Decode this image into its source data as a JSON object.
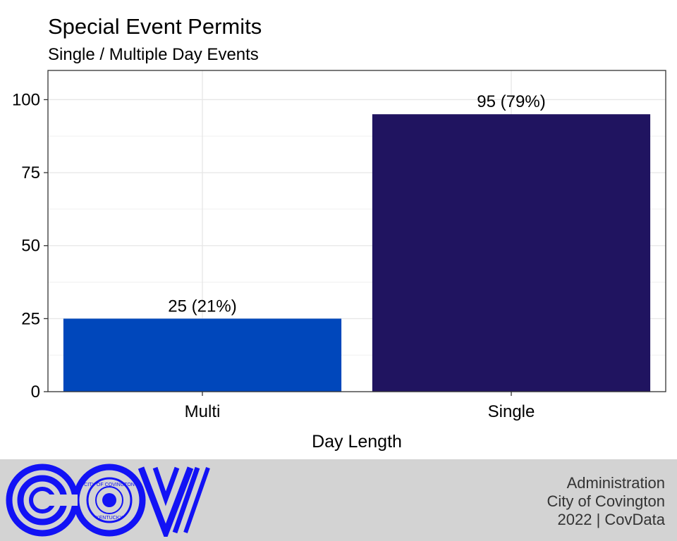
{
  "chart_data": {
    "type": "bar",
    "title": "Special Event Permits",
    "subtitle": "Single / Multiple Day Events",
    "xlabel": "Day Length",
    "ylabel": "",
    "categories": [
      "Multi",
      "Single"
    ],
    "values": [
      25,
      95
    ],
    "data_labels": [
      "25 (21%)",
      "95 (79%)"
    ],
    "bar_colors": [
      "#0047bb",
      "#201460"
    ],
    "ylim": [
      0,
      110
    ],
    "yticks": [
      0,
      25,
      50,
      75,
      100
    ],
    "grid": true,
    "legend": "none"
  },
  "footer": {
    "logo_text": "COV",
    "seal_text_top": "CITY OF COVINGTON",
    "seal_text_bottom": "KENTUCKY",
    "lines": [
      "Administration",
      "City of Covington",
      "2022 | CovData"
    ],
    "background": "#d3d3d3",
    "logo_color": "#1212f5"
  }
}
